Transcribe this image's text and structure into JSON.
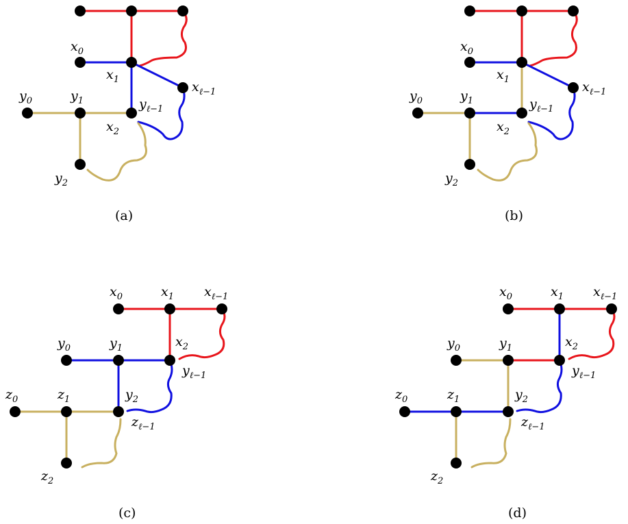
{
  "figure": {
    "panels": [
      {
        "caption": "(a)",
        "labels": {
          "x0": "x",
          "x0s": "0",
          "x1": "x",
          "x1s": "1",
          "xl": "x",
          "xls": "ℓ−1",
          "x2": "x",
          "x2s": "2",
          "y0": "y",
          "y0s": "0",
          "y1": "y",
          "y1s": "1",
          "yl": "y",
          "yls": "ℓ−1",
          "y2": "y",
          "y2s": "2"
        }
      },
      {
        "caption": "(b)",
        "labels": {
          "x0": "x",
          "x0s": "0",
          "x1": "x",
          "x1s": "1",
          "xl": "x",
          "xls": "ℓ−1",
          "x2": "x",
          "x2s": "2",
          "y0": "y",
          "y0s": "0",
          "y1": "y",
          "y1s": "1",
          "yl": "y",
          "yls": "ℓ−1",
          "y2": "y",
          "y2s": "2"
        }
      },
      {
        "caption": "(c)",
        "labels": {
          "x0": "x",
          "x0s": "0",
          "x1": "x",
          "x1s": "1",
          "xl": "x",
          "xls": "ℓ−1",
          "x2": "x",
          "x2s": "2",
          "y0": "y",
          "y0s": "0",
          "y1": "y",
          "y1s": "1",
          "yl": "y",
          "yls": "ℓ−1",
          "y2": "y",
          "y2s": "2",
          "z0": "z",
          "z0s": "0",
          "z1": "z",
          "z1s": "1",
          "zl": "z",
          "zls": "ℓ−1",
          "z2": "z",
          "z2s": "2"
        }
      },
      {
        "caption": "(d)",
        "labels": {
          "x0": "x",
          "x0s": "0",
          "x1": "x",
          "x1s": "1",
          "xl": "x",
          "xls": "ℓ−1",
          "x2": "x",
          "x2s": "2",
          "y0": "y",
          "y0s": "0",
          "y1": "y",
          "y1s": "1",
          "yl": "y",
          "yls": "ℓ−1",
          "y2": "y",
          "y2s": "2",
          "z0": "z",
          "z0s": "0",
          "z1": "z",
          "z1s": "1",
          "zl": "z",
          "zls": "ℓ−1",
          "z2": "z",
          "z2s": "2"
        }
      }
    ],
    "edge_colors": {
      "red": "#e8161c",
      "blue": "#1010e0",
      "tan": "#c8b060"
    }
  }
}
